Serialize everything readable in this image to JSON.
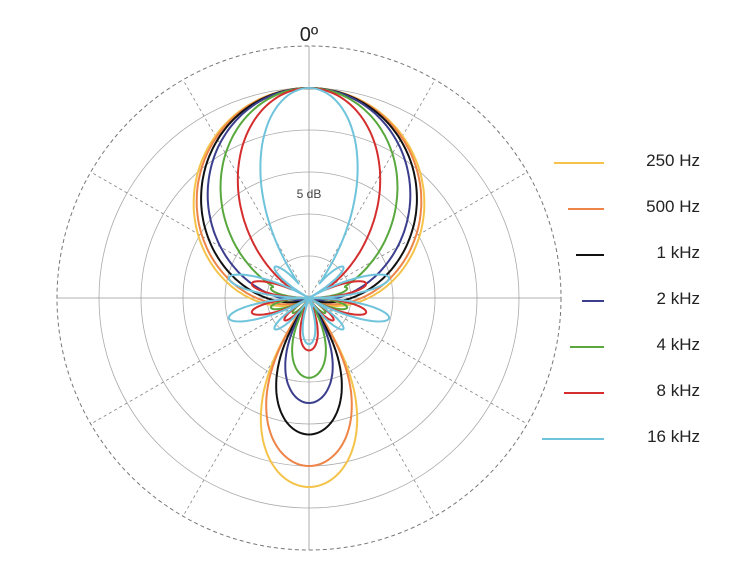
{
  "chart_data": {
    "type": "polar",
    "title_angle_label": "0º",
    "ring_label": "5 dB",
    "grid": true,
    "legend_position": "right",
    "series": [
      {
        "name": "250 Hz",
        "color": "#f5c34a",
        "r_front": 5.0,
        "width_hw": 140,
        "lobe_power": 2.0,
        "rear": 0.9,
        "rear_hw": 34,
        "side_lobe": 0
      },
      {
        "name": "500 Hz",
        "color": "#ee8447",
        "r_front": 5.0,
        "width_hw": 135,
        "lobe_power": 2.0,
        "rear": 0.8,
        "rear_hw": 34,
        "side_lobe": 0
      },
      {
        "name": "1 kHz",
        "color": "#111111",
        "r_front": 5.0,
        "width_hw": 128,
        "lobe_power": 2.0,
        "rear": 0.65,
        "rear_hw": 32,
        "side_lobe": 0
      },
      {
        "name": "2 kHz",
        "color": "#3a3e8c",
        "r_front": 5.0,
        "width_hw": 118,
        "lobe_power": 2.0,
        "rear": 0.5,
        "rear_hw": 30,
        "side_lobe": 0
      },
      {
        "name": "4 kHz",
        "color": "#58a83d",
        "r_front": 5.0,
        "width_hw": 100,
        "lobe_power": 2.0,
        "rear": 0.38,
        "rear_hw": 28,
        "side_lobe": 0.2
      },
      {
        "name": "8 kHz",
        "color": "#d42e2e",
        "r_front": 5.0,
        "width_hw": 78,
        "lobe_power": 2.0,
        "rear": 0.25,
        "rear_hw": 22,
        "side_lobe": 0.3
      },
      {
        "name": "16 kHz",
        "color": "#6fc3db",
        "r_front": 5.0,
        "width_hw": 38,
        "lobe_power": 1.0,
        "rear": 0.22,
        "rear_hw": 18,
        "side_lobe": 0.42
      }
    ]
  }
}
